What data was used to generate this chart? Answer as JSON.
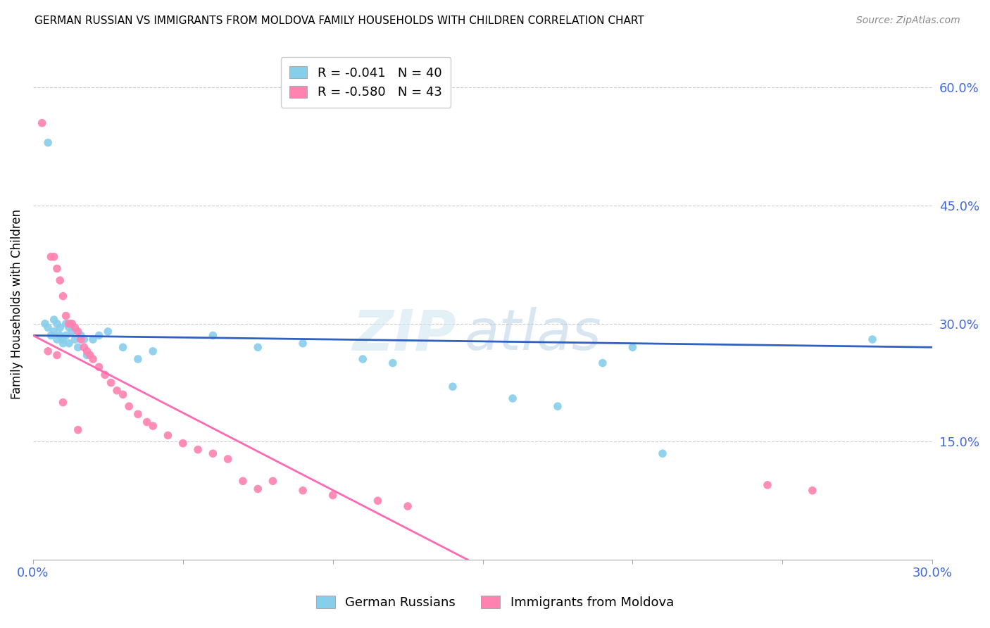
{
  "title": "GERMAN RUSSIAN VS IMMIGRANTS FROM MOLDOVA FAMILY HOUSEHOLDS WITH CHILDREN CORRELATION CHART",
  "source": "Source: ZipAtlas.com",
  "ylabel": "Family Households with Children",
  "xlim": [
    0.0,
    0.3
  ],
  "ylim": [
    0.0,
    0.65
  ],
  "x_tick_positions": [
    0.0,
    0.05,
    0.1,
    0.15,
    0.2,
    0.25,
    0.3
  ],
  "x_tick_labels": [
    "0.0%",
    "",
    "",
    "",
    "",
    "",
    "30.0%"
  ],
  "y_ticks_right": [
    0.15,
    0.3,
    0.45,
    0.6
  ],
  "y_tick_labels_right": [
    "15.0%",
    "30.0%",
    "45.0%",
    "60.0%"
  ],
  "color_blue": "#87CEEB",
  "color_pink": "#FF82B0",
  "color_line_blue": "#3060C0",
  "color_line_pink": "#FF69B4",
  "legend_R1": "R = -0.041",
  "legend_N1": "N = 40",
  "legend_R2": "R = -0.580",
  "legend_N2": "N = 43",
  "watermark_zip": "ZIP",
  "watermark_atlas": "atlas",
  "blue_x": [
    0.004,
    0.005,
    0.006,
    0.007,
    0.007,
    0.008,
    0.008,
    0.009,
    0.009,
    0.01,
    0.01,
    0.011,
    0.011,
    0.012,
    0.012,
    0.013,
    0.014,
    0.015,
    0.016,
    0.017,
    0.018,
    0.02,
    0.022,
    0.025,
    0.03,
    0.035,
    0.04,
    0.06,
    0.075,
    0.09,
    0.11,
    0.12,
    0.14,
    0.16,
    0.175,
    0.19,
    0.2,
    0.21,
    0.005,
    0.28
  ],
  "blue_y": [
    0.3,
    0.295,
    0.285,
    0.29,
    0.305,
    0.28,
    0.3,
    0.285,
    0.295,
    0.28,
    0.275,
    0.285,
    0.3,
    0.295,
    0.275,
    0.29,
    0.28,
    0.27,
    0.285,
    0.28,
    0.26,
    0.28,
    0.285,
    0.29,
    0.27,
    0.255,
    0.265,
    0.285,
    0.27,
    0.275,
    0.255,
    0.25,
    0.22,
    0.205,
    0.195,
    0.25,
    0.27,
    0.135,
    0.53,
    0.28
  ],
  "pink_x": [
    0.003,
    0.006,
    0.007,
    0.008,
    0.009,
    0.01,
    0.011,
    0.012,
    0.013,
    0.014,
    0.015,
    0.016,
    0.017,
    0.018,
    0.019,
    0.02,
    0.022,
    0.024,
    0.026,
    0.028,
    0.03,
    0.032,
    0.035,
    0.038,
    0.04,
    0.045,
    0.05,
    0.055,
    0.06,
    0.065,
    0.07,
    0.075,
    0.08,
    0.09,
    0.1,
    0.115,
    0.125,
    0.005,
    0.008,
    0.01,
    0.015,
    0.245,
    0.26
  ],
  "pink_y": [
    0.555,
    0.385,
    0.385,
    0.37,
    0.355,
    0.335,
    0.31,
    0.3,
    0.3,
    0.295,
    0.29,
    0.28,
    0.27,
    0.265,
    0.26,
    0.255,
    0.245,
    0.235,
    0.225,
    0.215,
    0.21,
    0.195,
    0.185,
    0.175,
    0.17,
    0.158,
    0.148,
    0.14,
    0.135,
    0.128,
    0.1,
    0.09,
    0.1,
    0.088,
    0.082,
    0.075,
    0.068,
    0.265,
    0.26,
    0.2,
    0.165,
    0.095,
    0.088
  ],
  "blue_line_x": [
    0.0,
    0.3
  ],
  "blue_line_y": [
    0.285,
    0.27
  ],
  "pink_line_x": [
    0.0,
    0.145
  ],
  "pink_line_y": [
    0.285,
    0.0
  ]
}
